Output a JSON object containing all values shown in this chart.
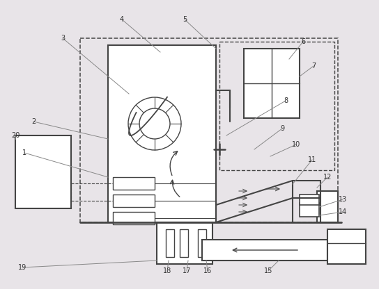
{
  "fig_width": 5.44,
  "fig_height": 4.16,
  "dpi": 100,
  "bg_color": "#e8e4e8",
  "line_color": "#444444",
  "label_color": "#333333",
  "leader_color": "#888888"
}
